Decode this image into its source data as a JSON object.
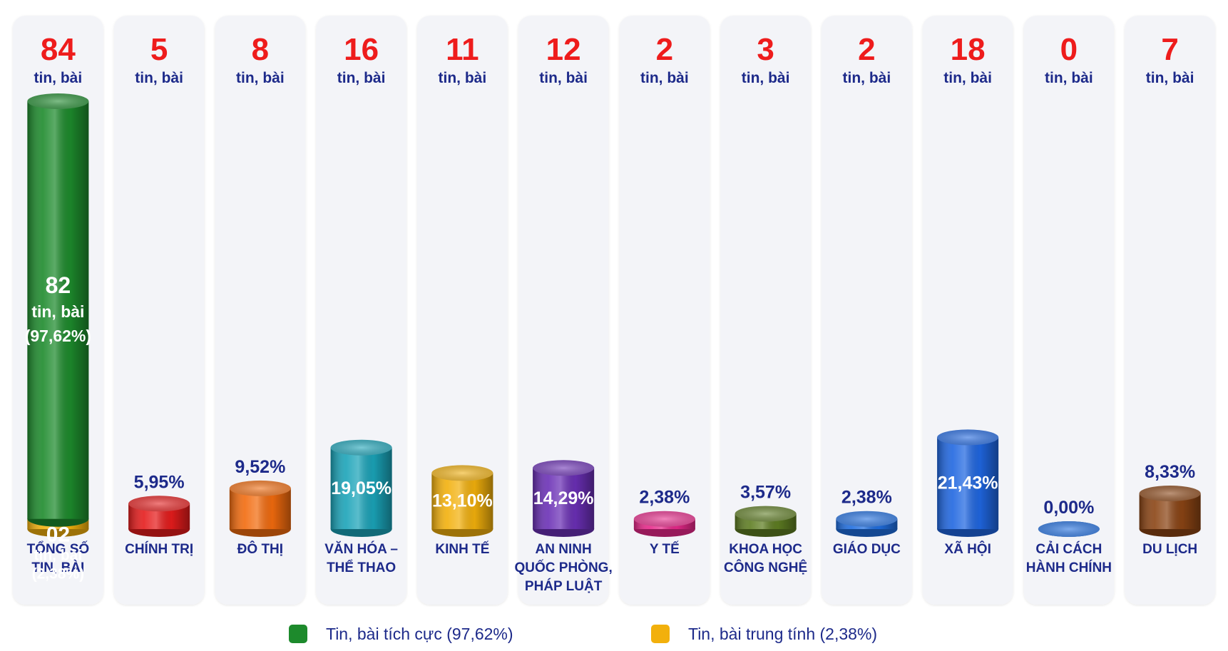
{
  "chart_data": {
    "type": "bar",
    "unit": "tin, bài",
    "categories": [
      {
        "label": [
          "TỔNG SỐ",
          "TIN, BÀI"
        ],
        "count": "84",
        "value": 84,
        "percent": "",
        "color": "#1d8a2c"
      },
      {
        "label": [
          "CHÍNH TRỊ"
        ],
        "count": "5",
        "value": 5,
        "percent": "5,95%",
        "color": "#e51c1c"
      },
      {
        "label": [
          "ĐÔ THỊ"
        ],
        "count": "8",
        "value": 8,
        "percent": "9,52%",
        "color": "#f26b0e"
      },
      {
        "label": [
          "VĂN HÓA –",
          "THỂ THAO"
        ],
        "count": "16",
        "value": 16,
        "percent": "19,05%",
        "color": "#1aa3b8"
      },
      {
        "label": [
          "KINH TẾ"
        ],
        "count": "11",
        "value": 11,
        "percent": "13,10%",
        "color": "#f2b00c"
      },
      {
        "label": [
          "AN NINH",
          "QUỐC PHÒNG,",
          "PHÁP LUẬT"
        ],
        "count": "12",
        "value": 12,
        "percent": "14,29%",
        "color": "#6a2fb5"
      },
      {
        "label": [
          "Y TẾ"
        ],
        "count": "2",
        "value": 2,
        "percent": "2,38%",
        "color": "#e8288a"
      },
      {
        "label": [
          "KHOA HỌC",
          "CÔNG NGHỆ"
        ],
        "count": "3",
        "value": 3,
        "percent": "3,57%",
        "color": "#5e7d22"
      },
      {
        "label": [
          "GIÁO DỤC"
        ],
        "count": "2",
        "value": 2,
        "percent": "2,38%",
        "color": "#1f6ee0"
      },
      {
        "label": [
          "XÃ HỘI"
        ],
        "count": "18",
        "value": 18,
        "percent": "21,43%",
        "color": "#1f66e0"
      },
      {
        "label": [
          "CẢI CÁCH",
          "HÀNH CHÍNH"
        ],
        "count": "0",
        "value": 0,
        "percent": "0,00%",
        "color": "#1f6ee0"
      },
      {
        "label": [
          "DU LỊCH"
        ],
        "count": "7",
        "value": 7,
        "percent": "8,33%",
        "color": "#8a4414"
      }
    ],
    "total_split": {
      "positive": {
        "count": "82",
        "unit": "tin, bài",
        "percent": "(97,62%)",
        "value": 82,
        "color": "#1d8a2c"
      },
      "neutral": {
        "count": "02",
        "unit": "tin, bài",
        "percent": "(2,38%)",
        "value": 2,
        "color": "#f2b00c"
      }
    },
    "legend": [
      {
        "label": "Tin, bài tích cực (97,62%)",
        "color": "#1d8a2c"
      },
      {
        "label": "Tin, bài trung tính (2,38%)",
        "color": "#f2b00c"
      }
    ]
  }
}
